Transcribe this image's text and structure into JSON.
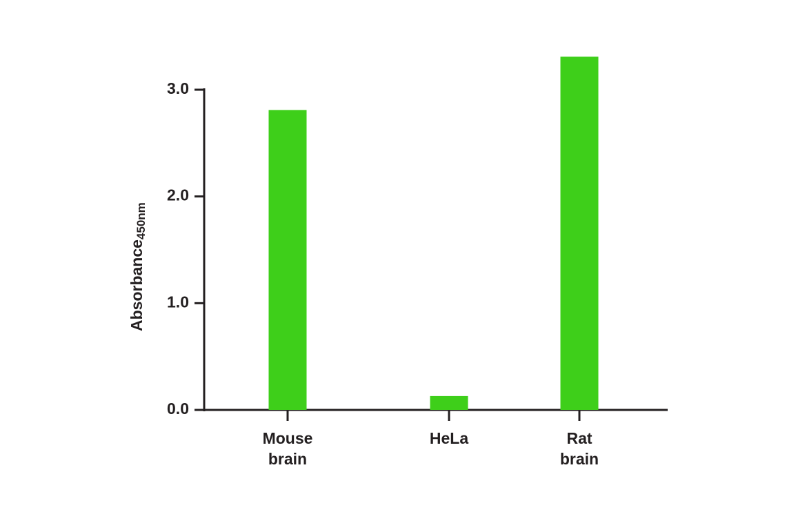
{
  "chart_data": {
    "type": "bar",
    "y_label": "Absorbance",
    "y_label_subscript": "450nm",
    "categories": [
      "Mouse brain",
      "HeLa",
      "Rat brain"
    ],
    "values": [
      2.81,
      0.13,
      3.31
    ],
    "color": "#3ecf1a",
    "ylim": [
      0,
      3
    ],
    "yticks": [
      {
        "value": 0,
        "label": "0.0"
      },
      {
        "value": 1,
        "label": "1.0"
      },
      {
        "value": 2,
        "label": "2.0"
      },
      {
        "value": 3,
        "label": "3.0"
      }
    ]
  }
}
